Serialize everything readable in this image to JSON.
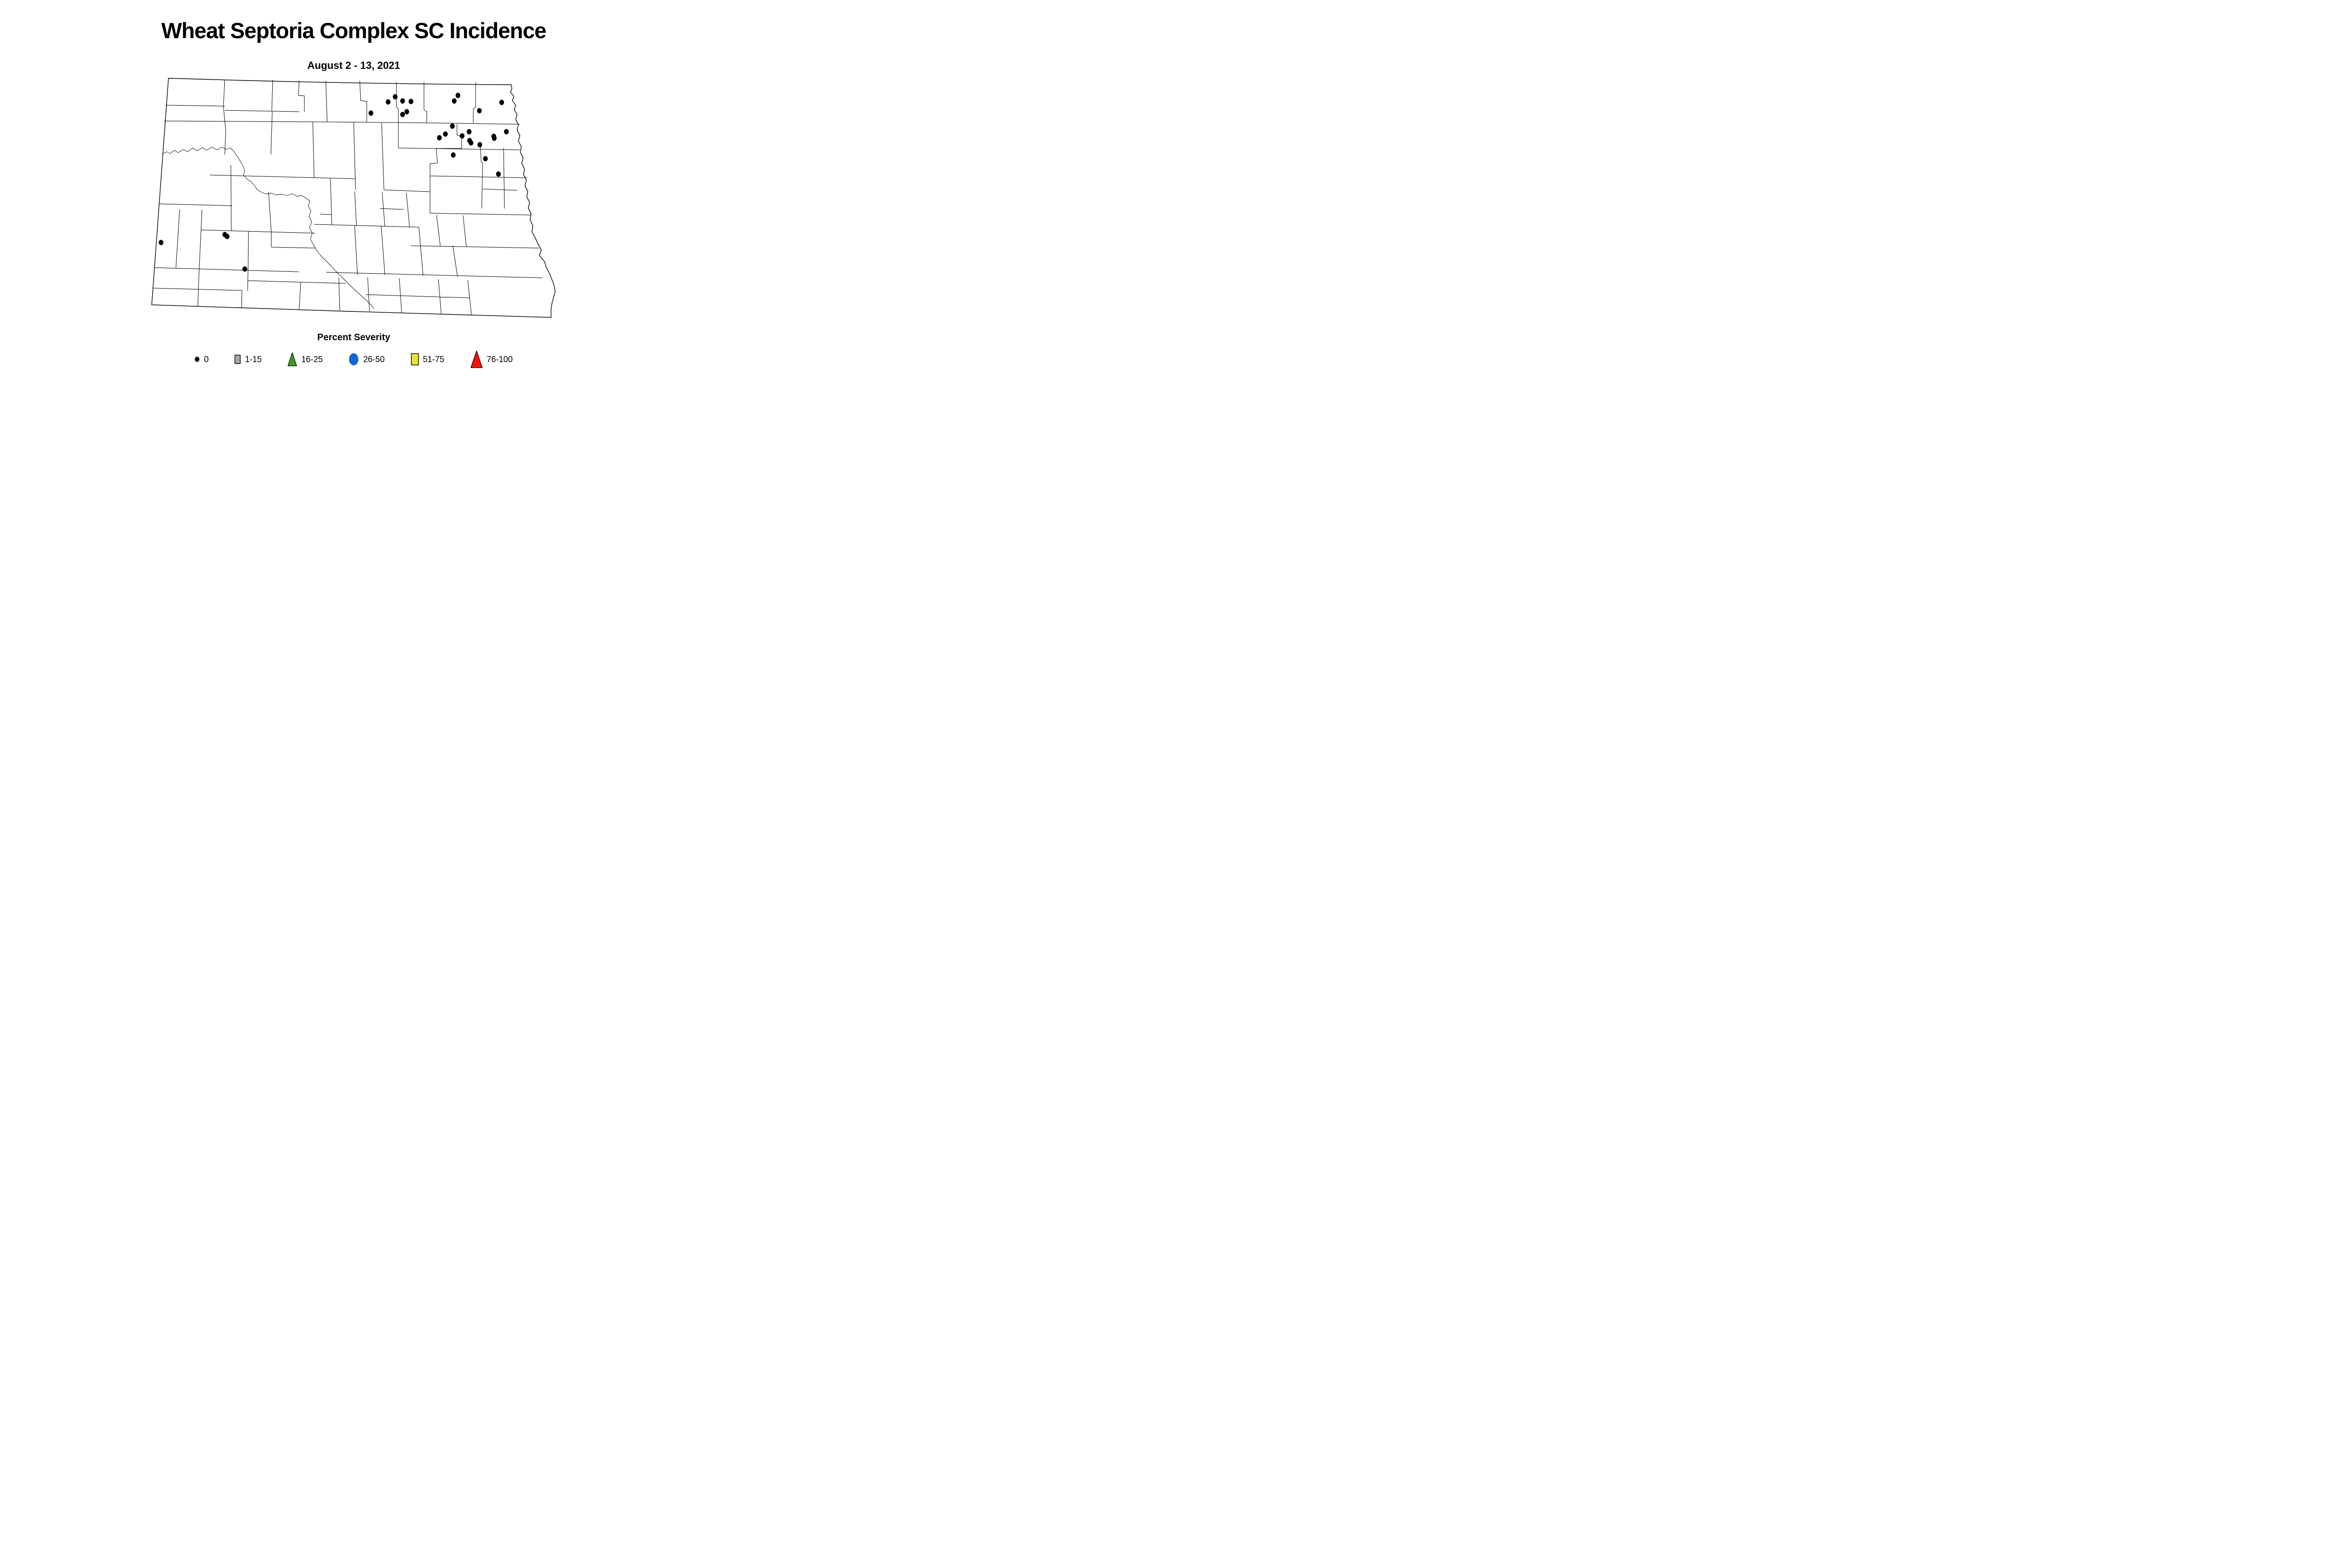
{
  "header": {
    "title": "Wheat Septoria Complex SC Incidence",
    "subtitle": "August 2 - 13, 2021"
  },
  "legend": {
    "title": "Percent Severity",
    "items": [
      {
        "label": "0",
        "shape": "dot",
        "color": "#000000"
      },
      {
        "label": "1-15",
        "shape": "square",
        "color": "#a8a8a8"
      },
      {
        "label": "16-25",
        "shape": "triangle",
        "color": "#3aa11f"
      },
      {
        "label": "26-50",
        "shape": "circle",
        "color": "#1165d8"
      },
      {
        "label": "51-75",
        "shape": "square",
        "color": "#e8e234"
      },
      {
        "label": "76-100",
        "shape": "triangle",
        "color": "#fb0f0c"
      }
    ]
  },
  "chart_data": {
    "type": "map",
    "title": "Wheat Septoria Complex SC Incidence",
    "subtitle": "August 2 - 13, 2021",
    "region": "North Dakota counties",
    "legend_title": "Percent Severity",
    "severity_classes": [
      "0",
      "1-15",
      "16-25",
      "26-50",
      "51-75",
      "76-100"
    ],
    "class_colors": [
      "#000000",
      "#a8a8a8",
      "#3aa11f",
      "#1165d8",
      "#e8e234",
      "#fb0f0c"
    ],
    "observed_point_class": "0",
    "point_color": "#000000",
    "coords_space": "map-svg px (viewBox 880x535)",
    "points": [
      [
        529,
        48
      ],
      [
        514,
        59
      ],
      [
        545,
        57
      ],
      [
        563,
        58
      ],
      [
        477,
        83
      ],
      [
        554,
        80
      ],
      [
        545,
        86
      ],
      [
        664,
        45
      ],
      [
        656,
        57
      ],
      [
        758,
        60
      ],
      [
        710,
        78
      ],
      [
        652,
        111
      ],
      [
        637,
        128
      ],
      [
        624,
        136
      ],
      [
        673,
        132
      ],
      [
        688,
        123
      ],
      [
        689,
        142
      ],
      [
        692,
        147
      ],
      [
        711,
        151
      ],
      [
        741,
        133
      ],
      [
        742,
        137
      ],
      [
        768,
        123
      ],
      [
        654,
        173
      ],
      [
        723,
        181
      ],
      [
        751,
        214
      ],
      [
        26,
        361
      ],
      [
        163,
        344
      ],
      [
        168,
        348
      ],
      [
        206,
        418
      ]
    ]
  }
}
